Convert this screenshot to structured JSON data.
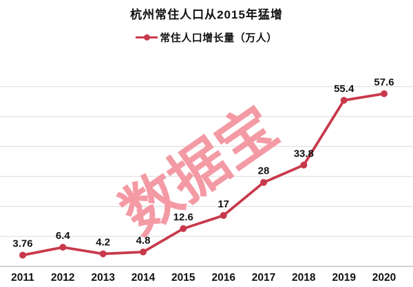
{
  "title": "杭州常住人口从2015年猛增",
  "legend": {
    "marker": "red-line-dot-icon",
    "label": "常住人口增长量（万人）"
  },
  "watermark": "数据宝",
  "colors": {
    "line": "#c8394b",
    "grid": "#d9d9d9",
    "axis": "#c2c2c2",
    "text": "#111111",
    "watermark": "#f49aa5"
  },
  "chart_data": {
    "type": "line",
    "title": "杭州常住人口从2015年猛增",
    "categories": [
      "2011",
      "2012",
      "2013",
      "2014",
      "2015",
      "2016",
      "2017",
      "2018",
      "2019",
      "2020"
    ],
    "series": [
      {
        "name": "常住人口增长量（万人）",
        "values": [
          3.76,
          6.4,
          4.2,
          4.8,
          12.6,
          17,
          28,
          33.8,
          55.4,
          57.6
        ]
      }
    ],
    "data_labels": [
      "3.76",
      "6.4",
      "4.2",
      "4.8",
      "12.6",
      "17",
      "28",
      "33.8",
      "55.4",
      "57.6"
    ],
    "xlabel": "",
    "ylabel": "",
    "ylim": [
      0,
      60
    ],
    "grid_step": 10,
    "grid": true,
    "legend_position": "top",
    "marker": "circle"
  }
}
